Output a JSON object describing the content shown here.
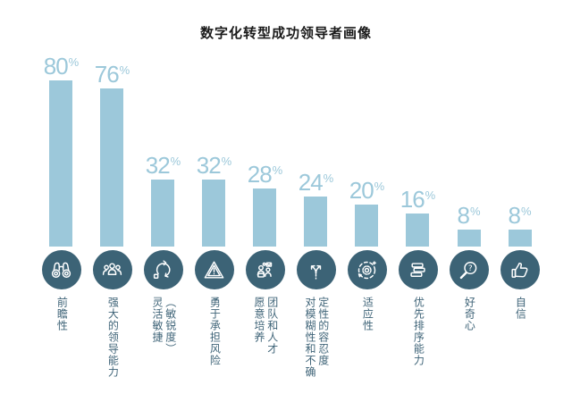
{
  "title": "数字化转型成功领导者画像",
  "colors": {
    "bar": "#9cc8da",
    "value_label_text": "#9cc8da",
    "icon_circle_background": "#3c6376",
    "icon_stroke": "#ffffff",
    "category_label_text": "#3f6478",
    "title_text": "#1a1a1a",
    "page_background": "#ffffff"
  },
  "chart_data": {
    "type": "bar",
    "title": "数字化转型成功领导者画像",
    "unit": "%",
    "ylim": [
      0,
      100
    ],
    "grid": false,
    "legend": "none",
    "value_labels_position": "above bars",
    "category_labels_orientation": "vertical, below icon circles",
    "categories": [
      "前瞻性",
      "强大的领导能力",
      "灵活敏捷（敏锐度）",
      "勇于承担风险",
      "愿意培养团队和人才",
      "对模糊性和不确定性的容忍度",
      "适应性",
      "优先排序能力",
      "好奇心",
      "自信"
    ],
    "values": [
      80,
      76,
      32,
      32,
      28,
      24,
      20,
      16,
      8,
      8
    ],
    "items": [
      {
        "value": 80,
        "label": "前瞻性",
        "label_columns": [
          "前瞻性"
        ],
        "icon": "binoculars-icon"
      },
      {
        "value": 76,
        "label": "强大的领导能力",
        "label_columns": [
          "强大的领导能力"
        ],
        "icon": "people-group-icon"
      },
      {
        "value": 32,
        "label": "灵活敏捷（敏锐度）",
        "label_columns": [
          "灵活敏捷",
          "（敏锐度）"
        ],
        "icon": "agile-cycle-icon"
      },
      {
        "value": 32,
        "label": "勇于承担风险",
        "label_columns": [
          "勇于承担风险"
        ],
        "icon": "warning-triangle-icon"
      },
      {
        "value": 28,
        "label": "愿意培养团队和人才",
        "label_columns": [
          "愿意培养",
          "团队和人才"
        ],
        "icon": "people-talent-icon"
      },
      {
        "value": 24,
        "label": "对模糊性和不确定性的容忍度",
        "label_columns": [
          "对模糊性和不确",
          "定性的容忍度"
        ],
        "icon": "branch-arrows-icon"
      },
      {
        "value": 20,
        "label": "适应性",
        "label_columns": [
          "适应性"
        ],
        "icon": "gear-orbit-icon"
      },
      {
        "value": 16,
        "label": "优先排序能力",
        "label_columns": [
          "优先排序能力"
        ],
        "icon": "stacked-layers-icon"
      },
      {
        "value": 8,
        "label": "好奇心",
        "label_columns": [
          "好奇心"
        ],
        "icon": "magnifier-question-icon"
      },
      {
        "value": 8,
        "label": "自信",
        "label_columns": [
          "自信"
        ],
        "icon": "thumbs-up-icon"
      }
    ]
  }
}
